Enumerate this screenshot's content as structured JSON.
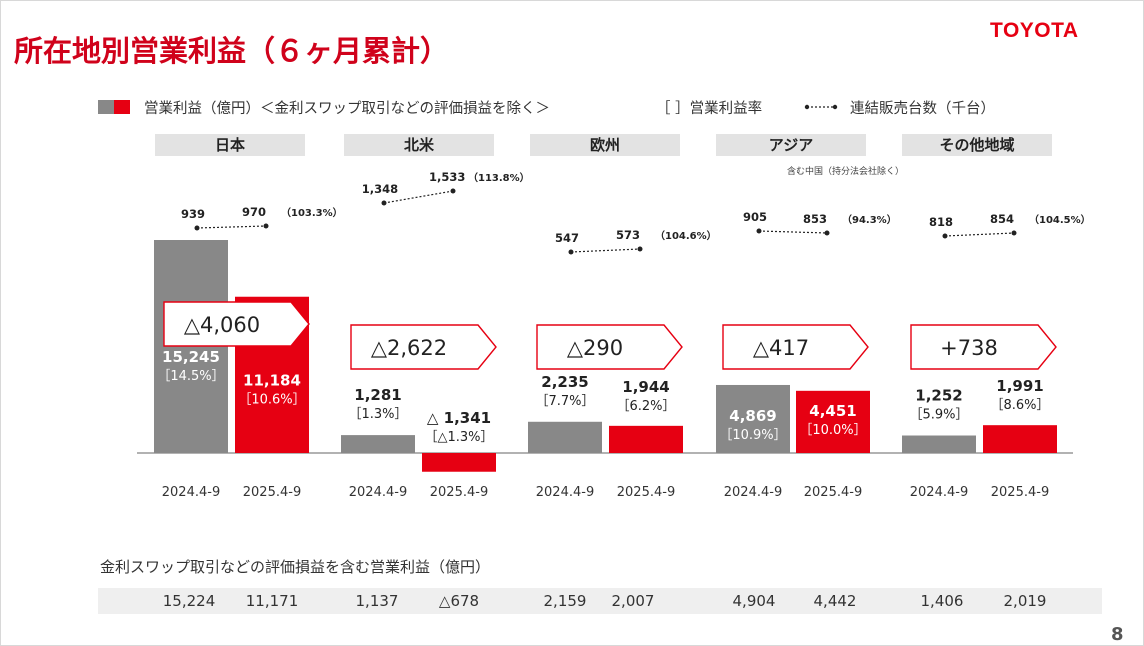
{
  "title": "所在地別営業利益（６ヶ月累計）",
  "logo": "TOYOTA",
  "page_number": "8",
  "legend": {
    "bars_label": "営業利益（億円）＜金利スワップ取引などの評価損益を除く＞",
    "rate_label": "［  ］営業利益率",
    "units_label": "連結販売台数（千台）"
  },
  "regions": [
    {
      "name": "日本",
      "prev_label": "2024.4-9",
      "curr_label": "2025.4-9",
      "prev_value": "15,245",
      "prev_rate": "［14.5%］",
      "curr_value": "11,184",
      "curr_rate": "［10.6%］",
      "change": "△4,060",
      "units_prev": "939",
      "units_curr": "970",
      "units_pct": "（103.3%）",
      "note": ""
    },
    {
      "name": "北米",
      "prev_label": "2024.4-9",
      "curr_label": "2025.4-9",
      "prev_value": "1,281",
      "prev_rate": "［1.3%］",
      "curr_value": "△ 1,341",
      "curr_rate": "［△1.3%］",
      "change": "△2,622",
      "units_prev": "1,348",
      "units_curr": "1,533",
      "units_pct": "（113.8%）",
      "note": ""
    },
    {
      "name": "欧州",
      "prev_label": "2024.4-9",
      "curr_label": "2025.4-9",
      "prev_value": "2,235",
      "prev_rate": "［7.7%］",
      "curr_value": "1,944",
      "curr_rate": "［6.2%］",
      "change": "△290",
      "units_prev": "547",
      "units_curr": "573",
      "units_pct": "（104.6%）",
      "note": ""
    },
    {
      "name": "アジア",
      "prev_label": "2024.4-9",
      "curr_label": "2025.4-9",
      "prev_value": "4,869",
      "prev_rate": "［10.9%］",
      "curr_value": "4,451",
      "curr_rate": "［10.0%］",
      "change": "△417",
      "units_prev": "905",
      "units_curr": "853",
      "units_pct": "（94.3%）",
      "note": "含む中国（持分法会社除く）"
    },
    {
      "name": "その他地域",
      "prev_label": "2024.4-9",
      "curr_label": "2025.4-9",
      "prev_value": "1,252",
      "prev_rate": "［5.9%］",
      "curr_value": "1,991",
      "curr_rate": "［8.6%］",
      "change": "+738",
      "units_prev": "818",
      "units_curr": "854",
      "units_pct": "（104.5%）",
      "note": ""
    }
  ],
  "bottom": {
    "title": "金利スワップ取引などの評価損益を含む営業利益（億円）",
    "values": [
      "15,224",
      "11,171",
      "1,137",
      "△678",
      "2,159",
      "2,007",
      "4,904",
      "4,442",
      "1,406",
      "2,019"
    ]
  },
  "colors": {
    "prev": "#888888",
    "curr": "#e60012",
    "title": "#d0021b",
    "axis": "#999999"
  },
  "chart_data": {
    "type": "bar",
    "title": "所在地別営業利益（６ヶ月累計）",
    "categories": [
      "日本",
      "北米",
      "欧州",
      "アジア",
      "その他地域"
    ],
    "series": [
      {
        "name": "2024.4-9",
        "values": [
          15245,
          1281,
          2235,
          4869,
          1252
        ],
        "margin_pct": [
          14.5,
          1.3,
          7.7,
          10.9,
          5.9
        ],
        "units_thousand": [
          939,
          1348,
          547,
          905,
          818
        ]
      },
      {
        "name": "2025.4-9",
        "values": [
          11184,
          -1341,
          1944,
          4451,
          1991
        ],
        "margin_pct": [
          10.6,
          -1.3,
          6.2,
          10.0,
          8.6
        ],
        "units_thousand": [
          970,
          1533,
          573,
          853,
          854
        ]
      }
    ],
    "change": [
      -4060,
      -2622,
      -290,
      -417,
      738
    ],
    "units_pct": [
      103.3,
      113.8,
      104.6,
      94.3,
      104.5
    ],
    "ylabel": "営業利益（億円）",
    "legend": "top",
    "grid": false
  }
}
